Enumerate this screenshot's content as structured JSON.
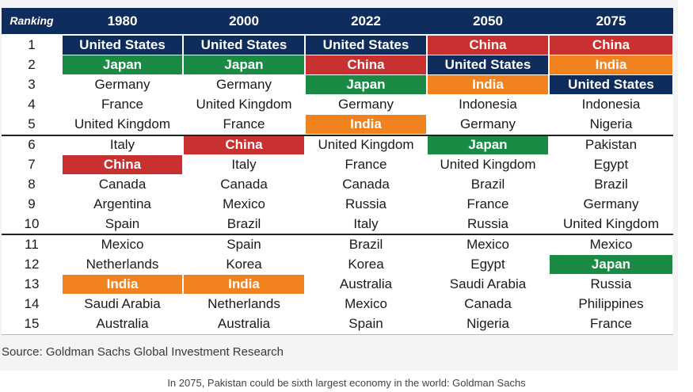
{
  "header": {
    "ranking_label": "Ranking",
    "years": [
      "1980",
      "2000",
      "2022",
      "2050",
      "2075"
    ]
  },
  "colors": {
    "header_bg": "#0e2d5c",
    "United States": "#0e2d5c",
    "China": "#c8312f",
    "Japan": "#1a8a45",
    "India": "#f2821f"
  },
  "rows": [
    {
      "rank": "1",
      "countries": [
        "United States",
        "United States",
        "United States",
        "China",
        "China"
      ]
    },
    {
      "rank": "2",
      "countries": [
        "Japan",
        "Japan",
        "China",
        "United States",
        "India"
      ]
    },
    {
      "rank": "3",
      "countries": [
        "Germany",
        "Germany",
        "Japan",
        "India",
        "United States"
      ]
    },
    {
      "rank": "4",
      "countries": [
        "France",
        "United Kingdom",
        "Germany",
        "Indonesia",
        "Indonesia"
      ]
    },
    {
      "rank": "5",
      "countries": [
        "United Kingdom",
        "France",
        "India",
        "Germany",
        "Nigeria"
      ]
    },
    {
      "rank": "6",
      "countries": [
        "Italy",
        "China",
        "United Kingdom",
        "Japan",
        "Pakistan"
      ]
    },
    {
      "rank": "7",
      "countries": [
        "China",
        "Italy",
        "France",
        "United Kingdom",
        "Egypt"
      ]
    },
    {
      "rank": "8",
      "countries": [
        "Canada",
        "Canada",
        "Canada",
        "Brazil",
        "Brazil"
      ]
    },
    {
      "rank": "9",
      "countries": [
        "Argentina",
        "Mexico",
        "Russia",
        "France",
        "Germany"
      ]
    },
    {
      "rank": "10",
      "countries": [
        "Spain",
        "Brazil",
        "Italy",
        "Russia",
        "United Kingdom"
      ]
    },
    {
      "rank": "11",
      "countries": [
        "Mexico",
        "Spain",
        "Brazil",
        "Mexico",
        "Mexico"
      ]
    },
    {
      "rank": "12",
      "countries": [
        "Netherlands",
        "Korea",
        "Korea",
        "Egypt",
        "Japan"
      ]
    },
    {
      "rank": "13",
      "countries": [
        "India",
        "India",
        "Australia",
        "Saudi Arabia",
        "Russia"
      ]
    },
    {
      "rank": "14",
      "countries": [
        "Saudi Arabia",
        "Netherlands",
        "Mexico",
        "Canada",
        "Philippines"
      ]
    },
    {
      "rank": "15",
      "countries": [
        "Australia",
        "Australia",
        "Spain",
        "Nigeria",
        "France"
      ]
    }
  ],
  "source": "Source: Goldman Sachs Global Investment Research",
  "caption": "In 2075, Pakistan could be sixth largest economy in the world: Goldman Sachs"
}
